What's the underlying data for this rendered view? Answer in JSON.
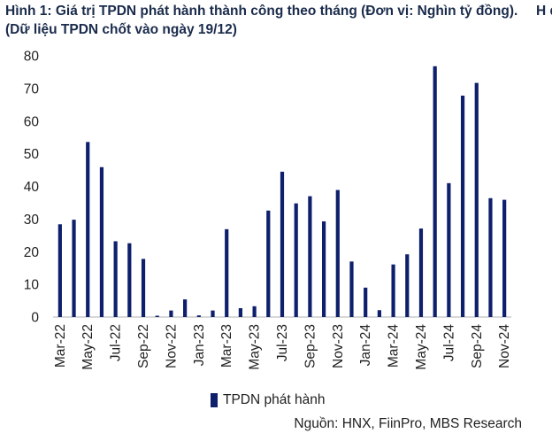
{
  "title": "Hình 1: Giá trị TPDN phát hành thành công theo tháng (Đơn vị: Nghìn tỷ đồng). (Dữ liệu TPDN chốt vào ngày 19/12)",
  "title_cut": "H đ",
  "legend_label": "TPDN phát hành",
  "source": "Nguồn: HNX, FiinPro, MBS Research",
  "colors": {
    "bar": "#0e1f6b",
    "axis": "#b0b0b0",
    "text": "#1f1f1f"
  },
  "chart_data": {
    "type": "bar",
    "title": "Hình 1: Giá trị TPDN phát hành thành công theo tháng (Đơn vị: Nghìn tỷ đồng). (Dữ liệu TPDN chốt vào ngày 19/12)",
    "xlabel": "",
    "ylabel": "",
    "ylim": [
      0,
      80
    ],
    "yticks": [
      0,
      10,
      20,
      30,
      40,
      50,
      60,
      70,
      80
    ],
    "grid": false,
    "legend_position": "bottom",
    "categories": [
      "Mar-22",
      "Apr-22",
      "May-22",
      "Jun-22",
      "Jul-22",
      "Aug-22",
      "Sep-22",
      "Oct-22",
      "Nov-22",
      "Dec-22",
      "Jan-23",
      "Feb-23",
      "Mar-23",
      "Apr-23",
      "May-23",
      "Jun-23",
      "Jul-23",
      "Aug-23",
      "Sep-23",
      "Oct-23",
      "Nov-23",
      "Dec-23",
      "Jan-24",
      "Feb-24",
      "Mar-24",
      "Apr-24",
      "May-24",
      "Jun-24",
      "Jul-24",
      "Aug-24",
      "Sep-24",
      "Oct-24",
      "Nov-24"
    ],
    "tick_labels": [
      "Mar-22",
      "May-22",
      "Jul-22",
      "Sep-22",
      "Nov-22",
      "Jan-23",
      "Mar-23",
      "May-23",
      "Jul-23",
      "Sep-23",
      "Nov-23",
      "Jan-24",
      "Mar-24",
      "May-24",
      "Jul-24",
      "Sep-24",
      "Nov-24"
    ],
    "series": [
      {
        "name": "TPDN phát hành",
        "values": [
          28.4,
          29.8,
          53.6,
          45.9,
          23.2,
          22.6,
          17.8,
          0.4,
          2.0,
          5.4,
          0.5,
          2.0,
          26.9,
          2.7,
          3.3,
          32.6,
          44.5,
          34.8,
          37.0,
          29.3,
          38.9,
          17.0,
          9.0,
          2.1,
          16.1,
          19.2,
          27.1,
          76.8,
          41.0,
          67.8,
          71.7,
          36.4,
          35.9
        ]
      }
    ]
  }
}
